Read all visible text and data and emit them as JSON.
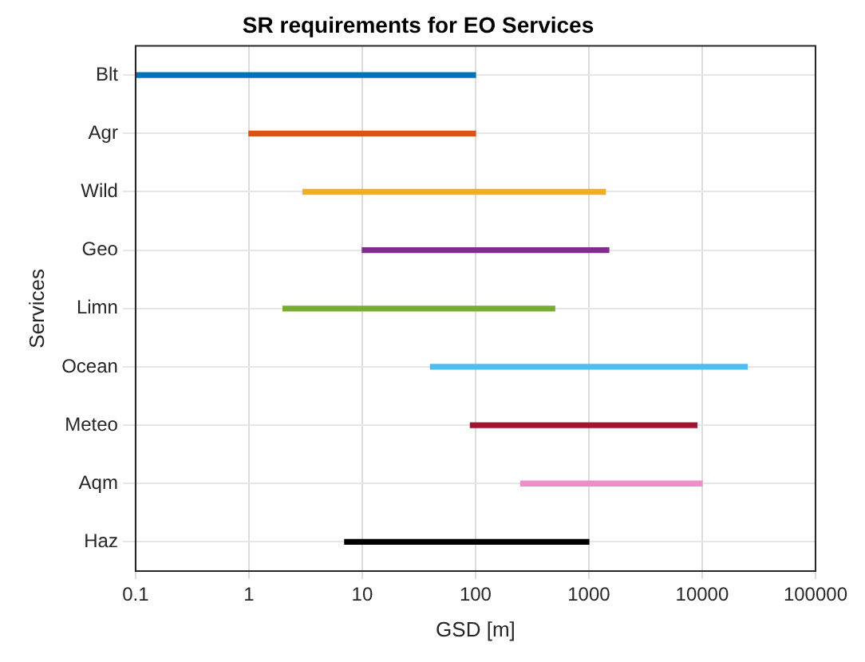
{
  "chart_data": {
    "type": "bar",
    "orientation": "horizontal",
    "title": "SR requirements for EO Services",
    "xlabel": "GSD [m]",
    "ylabel": "Services",
    "categories": [
      "Blt",
      "Agr",
      "Wild",
      "Geo",
      "Limn",
      "Ocean",
      "Meteo",
      "Aqm",
      "Haz"
    ],
    "base": [
      0.1,
      1,
      3,
      10,
      2,
      40,
      90,
      250,
      7
    ],
    "values": [
      99.9,
      99,
      1397,
      1490,
      498,
      24960,
      8910,
      9750,
      993
    ],
    "colors": [
      "#0072bd",
      "#d95319",
      "#edb120",
      "#7e2f8e",
      "#77ac30",
      "#4dbeee",
      "#a2142f",
      "#f08cc8",
      "#000000"
    ],
    "log": "x",
    "xlim": [
      0.1,
      100000
    ],
    "xticks": [
      0.1,
      1,
      10,
      100,
      1000,
      10000,
      100000
    ],
    "grid": true
  }
}
